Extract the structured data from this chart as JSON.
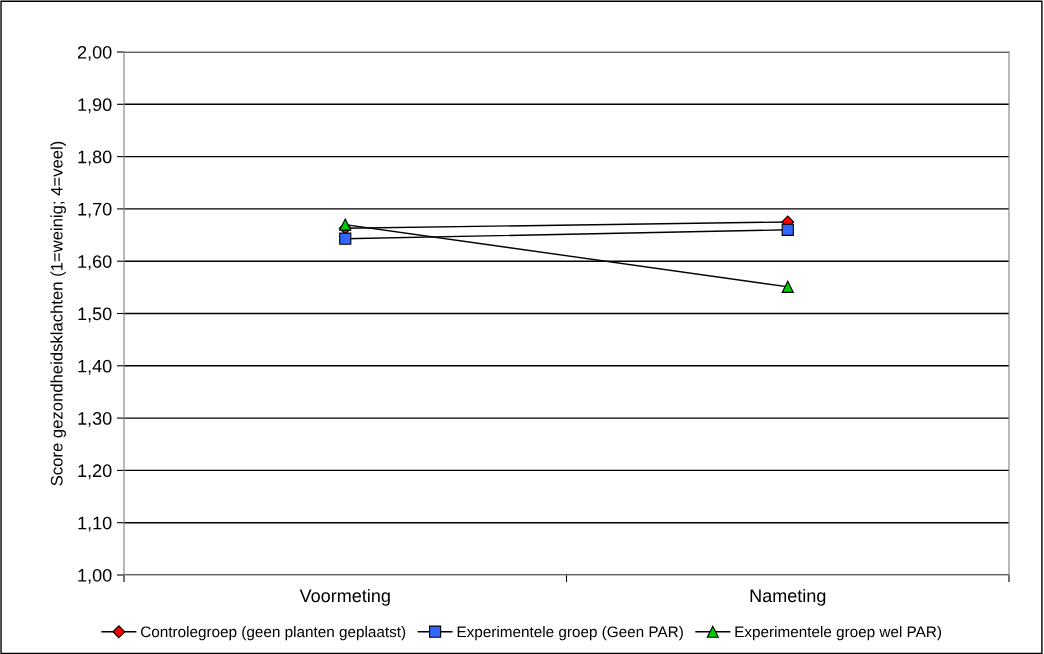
{
  "chart_data": {
    "type": "line",
    "ylabel": "Score gezondheidsklachten (1=weinig; 4=veel)",
    "categories": [
      "Voormeting",
      "Nameting"
    ],
    "series": [
      {
        "name": "Controlegroep (geen planten geplaatst)",
        "color": "#ff0000",
        "marker": "diamond",
        "values": [
          1.663,
          1.675
        ]
      },
      {
        "name": "Experimentele groep (Geen PAR)",
        "color": "#3366ff",
        "marker": "square",
        "values": [
          1.643,
          1.66
        ]
      },
      {
        "name": "Experimentele groep wel PAR)",
        "color": "#00cc00",
        "marker": "triangle",
        "values": [
          1.67,
          1.551
        ]
      }
    ],
    "ylim": [
      1.0,
      2.0
    ],
    "yticks": [
      {
        "value": 1.0,
        "label": "1,00"
      },
      {
        "value": 1.1,
        "label": "1,10"
      },
      {
        "value": 1.2,
        "label": "1,20"
      },
      {
        "value": 1.3,
        "label": "1,30"
      },
      {
        "value": 1.4,
        "label": "1,40"
      },
      {
        "value": 1.5,
        "label": "1,50"
      },
      {
        "value": 1.6,
        "label": "1,60"
      },
      {
        "value": 1.7,
        "label": "1,70"
      },
      {
        "value": 1.8,
        "label": "1,80"
      },
      {
        "value": 1.9,
        "label": "1,90"
      },
      {
        "value": 2.0,
        "label": "2,00"
      }
    ],
    "grid": "y",
    "legend": "bottom",
    "line_style": "solid"
  }
}
